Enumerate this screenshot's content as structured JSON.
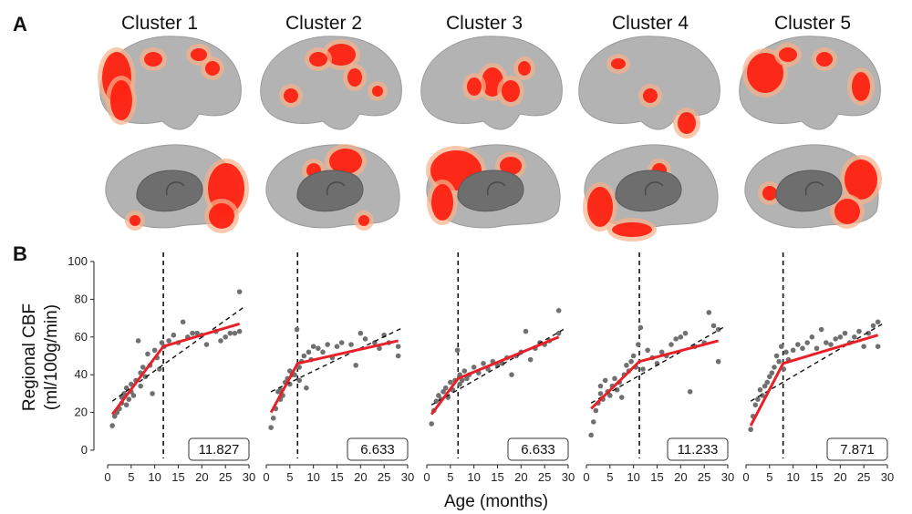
{
  "panels": {
    "a": "A",
    "b": "B"
  },
  "colors": {
    "brain": "#b3b3b3",
    "brain_shade": "#9a9a9a",
    "cortex_cut": "#6e6e6e",
    "hot": "#ff1a0a",
    "warm": "#f6b08a",
    "fit": "#e8202a",
    "point": "#707070"
  },
  "clusters": [
    {
      "title": "Cluster 1",
      "hot_region": "occipital-frontal"
    },
    {
      "title": "Cluster 2",
      "hot_region": "parietal-superior"
    },
    {
      "title": "Cluster 3",
      "hot_region": "frontal-medial"
    },
    {
      "title": "Cluster 4",
      "hot_region": "temporal"
    },
    {
      "title": "Cluster 5",
      "hot_region": "frontal-occipital"
    }
  ],
  "chart_data": {
    "type": "scatter",
    "ylabel_line1": "Regional CBF",
    "ylabel_line2": "(ml/100g/min)",
    "xlabel": "Age (months)",
    "ylim": [
      0,
      100
    ],
    "xlim": [
      0,
      30
    ],
    "yticks": [
      0,
      20,
      40,
      60,
      80,
      100
    ],
    "xticks": [
      0,
      5,
      10,
      15,
      20,
      25,
      30
    ],
    "subplots": [
      {
        "breakpoint": 11.827,
        "breakpoint_label": "11.827",
        "segmented_fit": [
          [
            1,
            19
          ],
          [
            11.827,
            55
          ],
          [
            28,
            67
          ]
        ],
        "linear_fit": [
          [
            1,
            26
          ],
          [
            29,
            76
          ]
        ],
        "points": [
          [
            1,
            13
          ],
          [
            1.5,
            18
          ],
          [
            2,
            20
          ],
          [
            2.5,
            22
          ],
          [
            3,
            25
          ],
          [
            3,
            28
          ],
          [
            3.5,
            30
          ],
          [
            4,
            24
          ],
          [
            4,
            33
          ],
          [
            4.5,
            27
          ],
          [
            5,
            31
          ],
          [
            5,
            35
          ],
          [
            5.5,
            29
          ],
          [
            6,
            37
          ],
          [
            6.5,
            58
          ],
          [
            7,
            41
          ],
          [
            7,
            34
          ],
          [
            7.5,
            44
          ],
          [
            8,
            39
          ],
          [
            8.5,
            51
          ],
          [
            9,
            45
          ],
          [
            9.5,
            30
          ],
          [
            10,
            53
          ],
          [
            10.5,
            49
          ],
          [
            11,
            43
          ],
          [
            11.5,
            57
          ],
          [
            12,
            55
          ],
          [
            13,
            58
          ],
          [
            14,
            61
          ],
          [
            15,
            57
          ],
          [
            16,
            68
          ],
          [
            17,
            60
          ],
          [
            18,
            62
          ],
          [
            19,
            62
          ],
          [
            20,
            61
          ],
          [
            21,
            56
          ],
          [
            23,
            63
          ],
          [
            24,
            58
          ],
          [
            25,
            60
          ],
          [
            26,
            62
          ],
          [
            27,
            62
          ],
          [
            28,
            84
          ],
          [
            28,
            63
          ]
        ]
      },
      {
        "breakpoint": 6.633,
        "breakpoint_label": "6.633",
        "segmented_fit": [
          [
            1,
            20
          ],
          [
            6.633,
            46
          ],
          [
            28,
            58
          ]
        ],
        "linear_fit": [
          [
            1,
            31
          ],
          [
            29,
            65
          ]
        ],
        "points": [
          [
            1,
            12
          ],
          [
            1.5,
            17
          ],
          [
            2,
            22
          ],
          [
            2.5,
            31
          ],
          [
            3,
            32
          ],
          [
            3,
            27
          ],
          [
            3.5,
            29
          ],
          [
            4,
            36
          ],
          [
            4.5,
            38
          ],
          [
            5,
            42
          ],
          [
            5,
            35
          ],
          [
            5.5,
            40
          ],
          [
            6,
            40
          ],
          [
            6.5,
            64
          ],
          [
            7,
            44
          ],
          [
            7,
            37
          ],
          [
            7.5,
            47
          ],
          [
            8,
            50
          ],
          [
            8.5,
            33
          ],
          [
            9,
            52
          ],
          [
            9.5,
            48
          ],
          [
            10,
            55
          ],
          [
            11,
            54
          ],
          [
            12,
            52
          ],
          [
            13,
            56
          ],
          [
            14,
            49
          ],
          [
            15,
            55
          ],
          [
            16,
            57
          ],
          [
            18,
            56
          ],
          [
            19,
            45
          ],
          [
            20,
            62
          ],
          [
            21,
            59
          ],
          [
            23,
            57
          ],
          [
            24,
            54
          ],
          [
            25,
            61
          ],
          [
            26,
            57
          ],
          [
            28,
            50
          ],
          [
            28,
            55
          ]
        ]
      },
      {
        "breakpoint": 6.633,
        "breakpoint_label": "6.633",
        "segmented_fit": [
          [
            1,
            19
          ],
          [
            6.633,
            38
          ],
          [
            28,
            60
          ]
        ],
        "linear_fit": [
          [
            1,
            24
          ],
          [
            29,
            64
          ]
        ],
        "points": [
          [
            1,
            14
          ],
          [
            1.5,
            21
          ],
          [
            2,
            26
          ],
          [
            2.5,
            29
          ],
          [
            3,
            27
          ],
          [
            3.5,
            31
          ],
          [
            4,
            33
          ],
          [
            4.5,
            28
          ],
          [
            5,
            36
          ],
          [
            5.5,
            32
          ],
          [
            6,
            37
          ],
          [
            6.5,
            53
          ],
          [
            7,
            40
          ],
          [
            7,
            35
          ],
          [
            7.5,
            37
          ],
          [
            8,
            42
          ],
          [
            8.5,
            38
          ],
          [
            9,
            40
          ],
          [
            10,
            44
          ],
          [
            11,
            41
          ],
          [
            12,
            46
          ],
          [
            13,
            43
          ],
          [
            14,
            47
          ],
          [
            15,
            45
          ],
          [
            16,
            46
          ],
          [
            17,
            49
          ],
          [
            18,
            40
          ],
          [
            19,
            50
          ],
          [
            20,
            52
          ],
          [
            21,
            63
          ],
          [
            22,
            48
          ],
          [
            23,
            54
          ],
          [
            24,
            57
          ],
          [
            25,
            56
          ],
          [
            26,
            58
          ],
          [
            28,
            74
          ],
          [
            28,
            62
          ]
        ]
      },
      {
        "breakpoint": 11.233,
        "breakpoint_label": "11.233",
        "segmented_fit": [
          [
            1,
            22
          ],
          [
            11.233,
            47
          ],
          [
            28,
            58
          ]
        ],
        "linear_fit": [
          [
            1,
            25
          ],
          [
            29,
            65
          ]
        ],
        "points": [
          [
            1,
            8
          ],
          [
            1.5,
            15
          ],
          [
            2,
            21
          ],
          [
            2.5,
            25
          ],
          [
            3,
            30
          ],
          [
            3,
            34
          ],
          [
            3.5,
            27
          ],
          [
            4,
            37
          ],
          [
            4.5,
            31
          ],
          [
            5,
            29
          ],
          [
            5.5,
            34
          ],
          [
            6,
            38
          ],
          [
            6.5,
            32
          ],
          [
            7,
            36
          ],
          [
            7.5,
            28
          ],
          [
            8,
            40
          ],
          [
            8.5,
            45
          ],
          [
            9,
            42
          ],
          [
            9.5,
            47
          ],
          [
            10,
            50
          ],
          [
            10.5,
            44
          ],
          [
            11,
            56
          ],
          [
            11.5,
            65
          ],
          [
            12,
            43
          ],
          [
            13,
            53
          ],
          [
            14,
            49
          ],
          [
            15,
            46
          ],
          [
            16,
            52
          ],
          [
            17,
            50
          ],
          [
            18,
            56
          ],
          [
            19,
            59
          ],
          [
            20,
            60
          ],
          [
            21,
            62
          ],
          [
            22,
            31
          ],
          [
            23,
            55
          ],
          [
            25,
            57
          ],
          [
            26,
            73
          ],
          [
            27,
            66
          ],
          [
            28,
            64
          ],
          [
            28,
            47
          ]
        ]
      },
      {
        "breakpoint": 7.871,
        "breakpoint_label": "7.871",
        "segmented_fit": [
          [
            1,
            13
          ],
          [
            7.871,
            46
          ],
          [
            28,
            61
          ]
        ],
        "linear_fit": [
          [
            1,
            26
          ],
          [
            29,
            67
          ]
        ],
        "points": [
          [
            1,
            11
          ],
          [
            1.5,
            18
          ],
          [
            2,
            24
          ],
          [
            2.5,
            27
          ],
          [
            3,
            32
          ],
          [
            3.5,
            29
          ],
          [
            4,
            34
          ],
          [
            4.5,
            36
          ],
          [
            5,
            39
          ],
          [
            5.5,
            41
          ],
          [
            6,
            44
          ],
          [
            6.5,
            50
          ],
          [
            7,
            47
          ],
          [
            7.5,
            55
          ],
          [
            8,
            43
          ],
          [
            8.5,
            52
          ],
          [
            9,
            48
          ],
          [
            10,
            53
          ],
          [
            11,
            56
          ],
          [
            12,
            54
          ],
          [
            13,
            57
          ],
          [
            14,
            60
          ],
          [
            15,
            54
          ],
          [
            16,
            64
          ],
          [
            17,
            57
          ],
          [
            18,
            56
          ],
          [
            19,
            59
          ],
          [
            20,
            60
          ],
          [
            21,
            62
          ],
          [
            22,
            57
          ],
          [
            23,
            60
          ],
          [
            24,
            63
          ],
          [
            25,
            55
          ],
          [
            26,
            62
          ],
          [
            27,
            66
          ],
          [
            28,
            68
          ],
          [
            28,
            55
          ]
        ]
      }
    ]
  }
}
